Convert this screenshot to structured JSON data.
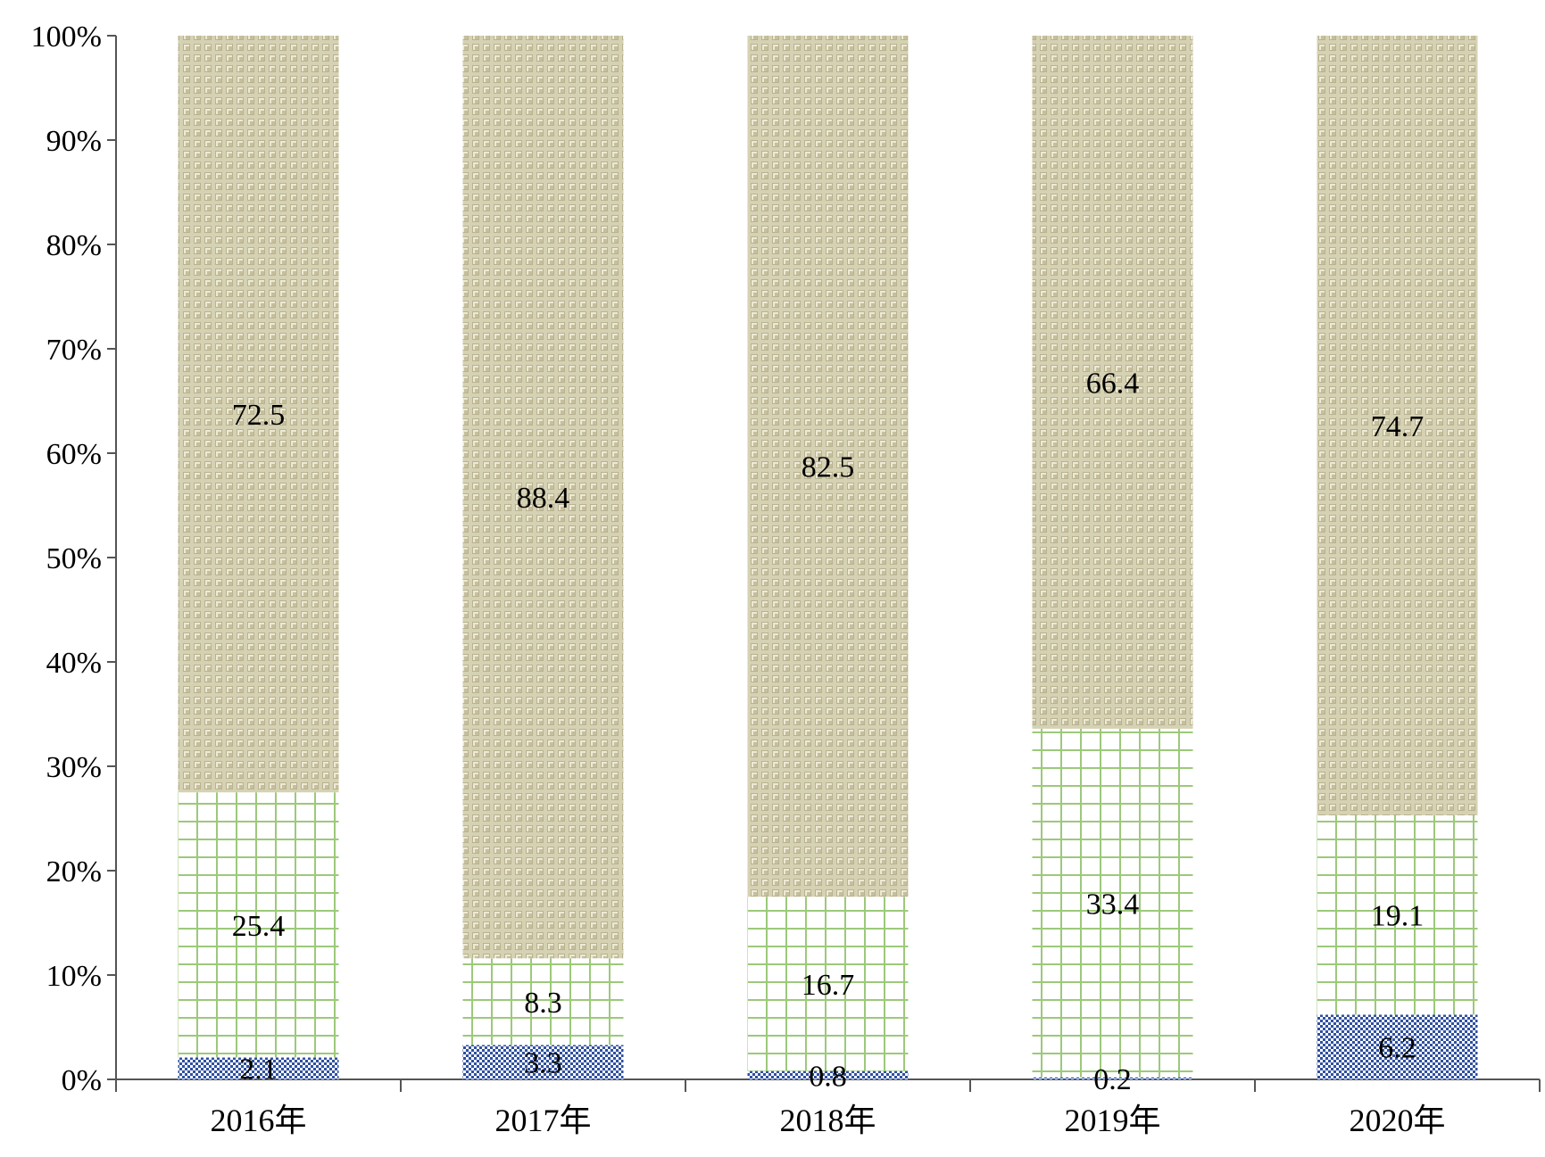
{
  "chart_data": {
    "type": "bar",
    "stacked": true,
    "percent_stacked": true,
    "categories": [
      "2016年",
      "2017年",
      "2018年",
      "2019年",
      "2020年"
    ],
    "series": [
      {
        "values": [
          2.1,
          3.3,
          0.8,
          0.2,
          6.2
        ],
        "labels": [
          "2.1",
          "3.3",
          "0.8",
          "0.2",
          "6.2"
        ],
        "color": "#3a5aa8",
        "pattern": "checker"
      },
      {
        "values": [
          25.4,
          8.3,
          16.7,
          33.4,
          19.1
        ],
        "labels": [
          "25.4",
          "8.3",
          "16.7",
          "33.4",
          "19.1"
        ],
        "color": "#9cc97a",
        "pattern": "grid"
      },
      {
        "values": [
          72.5,
          88.4,
          82.5,
          66.4,
          74.7
        ],
        "labels": [
          "72.5",
          "88.4",
          "82.5",
          "66.4",
          "74.7"
        ],
        "color": "#c8c3a0",
        "pattern": "weave"
      }
    ],
    "y_ticks": [
      "0%",
      "10%",
      "20%",
      "30%",
      "40%",
      "50%",
      "60%",
      "70%",
      "80%",
      "90%",
      "100%"
    ],
    "ylim": [
      0,
      100
    ],
    "grid": false,
    "legend": "none"
  }
}
